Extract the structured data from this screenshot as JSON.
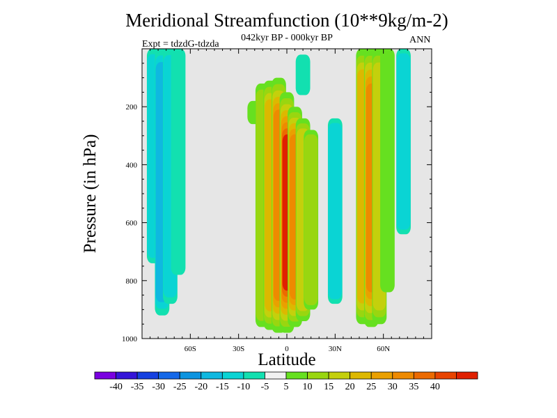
{
  "header": {
    "title": "Meridional Streamfunction (10**9kg/m-2)",
    "subtitle": "042kyr BP - 000kyr BP",
    "experiment": "Expt = tdzdG-tdzda",
    "season": "ANN"
  },
  "chart_data": {
    "type": "heatmap",
    "title": "Meridional Streamfunction (10**9kg/m-2)",
    "xlabel": "Latitude",
    "ylabel": "Pressure (in hPa)",
    "xlim": [
      -90,
      90
    ],
    "ylim": [
      1000,
      0
    ],
    "xticks": [
      {
        "value": -60,
        "label": "60S"
      },
      {
        "value": -30,
        "label": "30S"
      },
      {
        "value": 0,
        "label": "0"
      },
      {
        "value": 30,
        "label": "30N"
      },
      {
        "value": 60,
        "label": "60N"
      }
    ],
    "yticks": [
      {
        "value": 200,
        "label": "200"
      },
      {
        "value": 400,
        "label": "400"
      },
      {
        "value": 600,
        "label": "600"
      },
      {
        "value": 800,
        "label": "800"
      },
      {
        "value": 1000,
        "label": "1000"
      }
    ],
    "background_color": "#e6e6e6",
    "colorbar": {
      "colors": [
        "#7a00e0",
        "#3515d8",
        "#1540e0",
        "#1468e8",
        "#0c94e0",
        "#0fb8e0",
        "#0ad4d4",
        "#12e0b0",
        "#f0f0f0",
        "#66e020",
        "#99d610",
        "#c4d00c",
        "#ddb800",
        "#eaa000",
        "#ee8a00",
        "#ec6a00",
        "#e84400",
        "#e02000"
      ],
      "labels": [
        "-40",
        "-35",
        "-30",
        "-25",
        "-20",
        "-15",
        "-10",
        "-5",
        "5",
        "10",
        "15",
        "20",
        "25",
        "30",
        "35",
        "40"
      ]
    },
    "cells": [
      {
        "lat": -82.5,
        "lon_note": "",
        "p_from": 0,
        "p_to": 740,
        "value": -12
      },
      {
        "lat": -77.5,
        "p_from": 0,
        "p_to": 920,
        "value": -17
      },
      {
        "lat": -72.5,
        "p_from": 0,
        "p_to": 880,
        "value": -12
      },
      {
        "lat": -67.5,
        "p_from": 0,
        "p_to": 780,
        "value": -9
      },
      {
        "lat": -20.0,
        "p_from": 180,
        "p_to": 260,
        "value": 8
      },
      {
        "lat": -15.0,
        "p_from": 120,
        "p_to": 960,
        "value": 13
      },
      {
        "lat": -10.0,
        "p_from": 110,
        "p_to": 970,
        "value": 22
      },
      {
        "lat": -5.0,
        "p_from": 100,
        "p_to": 980,
        "value": 33
      },
      {
        "lat": 0.0,
        "p_from": 150,
        "p_to": 980,
        "value": 42
      },
      {
        "lat": 5.0,
        "p_from": 200,
        "p_to": 960,
        "value": 32
      },
      {
        "lat": 10.0,
        "p_from": 240,
        "p_to": 940,
        "value": 18
      },
      {
        "lat": 15.0,
        "p_from": 280,
        "p_to": 900,
        "value": 10
      },
      {
        "lat": 10.0,
        "p_from": 20,
        "p_to": 160,
        "value": -9
      },
      {
        "lat": 30.0,
        "p_from": 240,
        "p_to": 880,
        "value": -12
      },
      {
        "lat": 47.5,
        "p_from": 0,
        "p_to": 950,
        "value": 22
      },
      {
        "lat": 52.5,
        "p_from": 0,
        "p_to": 960,
        "value": 30
      },
      {
        "lat": 57.5,
        "p_from": 0,
        "p_to": 950,
        "value": 16
      },
      {
        "lat": 62.5,
        "p_from": 0,
        "p_to": 840,
        "value": 9
      },
      {
        "lat": 72.5,
        "p_from": 0,
        "p_to": 640,
        "value": -11
      }
    ]
  }
}
